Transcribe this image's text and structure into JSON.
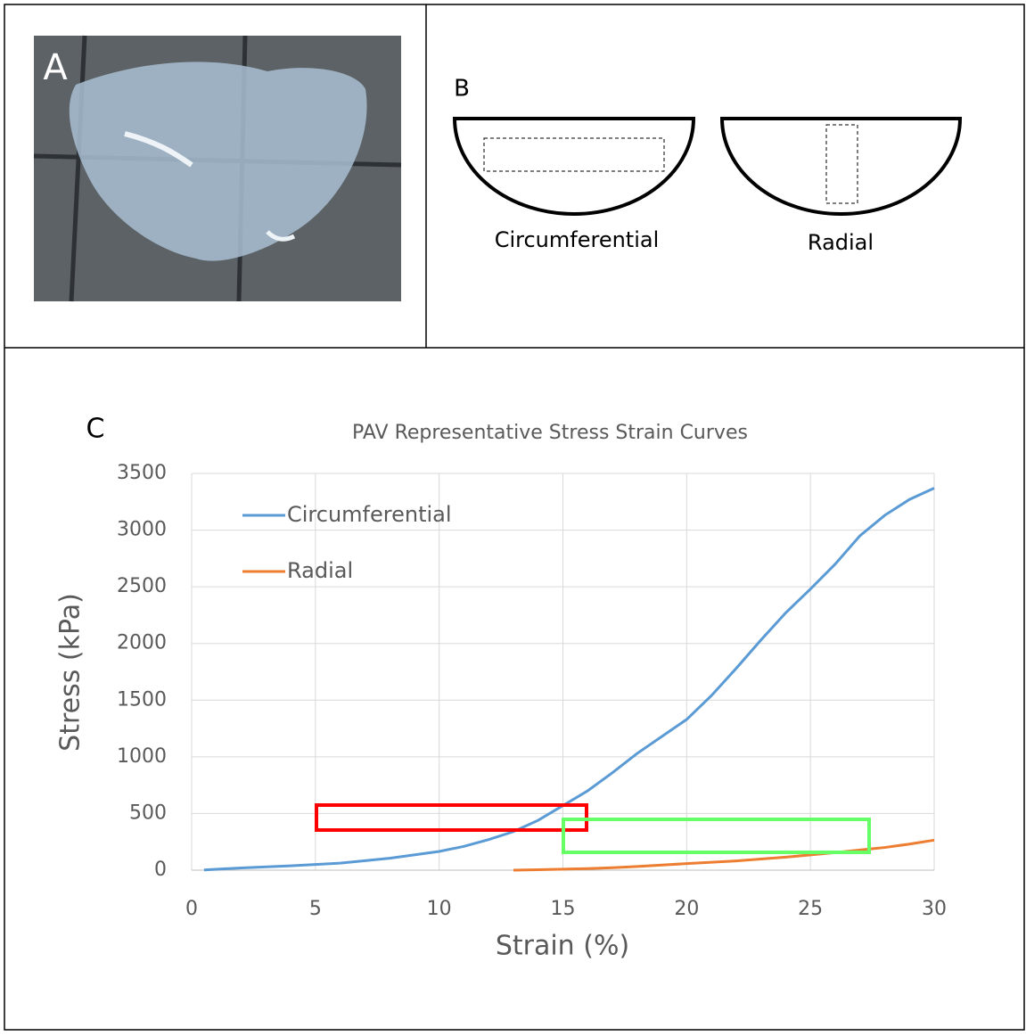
{
  "panel_labels": [
    "A",
    "B",
    "C"
  ],
  "diagram": {
    "labels": [
      "Circumferential",
      "Radial"
    ]
  },
  "chart_data": {
    "type": "line",
    "title": "PAV Representative Stress Strain Curves",
    "x_label": "Strain (%)",
    "y_label": "Stress (kPa)",
    "x": [
      0.5,
      2,
      4,
      6,
      8,
      10,
      11,
      12,
      13,
      14,
      15,
      16,
      17,
      18,
      19,
      20,
      21,
      22,
      23,
      24,
      25,
      26,
      27,
      28,
      29,
      30
    ],
    "series": [
      {
        "name": "Circumferential",
        "color": "#5b9bd5",
        "values": [
          2,
          20,
          38,
          62,
          105,
          165,
          210,
          270,
          340,
          440,
          570,
          700,
          860,
          1030,
          1180,
          1330,
          1540,
          1780,
          2030,
          2270,
          2480,
          2700,
          2950,
          3130,
          3270,
          3370
        ]
      },
      {
        "name": "Radial",
        "color": "#ed7d31",
        "values": [
          null,
          null,
          null,
          null,
          null,
          null,
          null,
          null,
          0,
          4,
          9,
          14,
          22,
          32,
          45,
          58,
          70,
          82,
          98,
          115,
          135,
          155,
          178,
          200,
          230,
          265
        ]
      }
    ],
    "xlim": [
      0,
      30
    ],
    "xticks": [
      0,
      5,
      10,
      15,
      20,
      25,
      30
    ],
    "ylim": [
      0,
      3500
    ],
    "yticks": [
      0,
      500,
      1000,
      1500,
      2000,
      2500,
      3000,
      3500
    ],
    "grid": true,
    "legend": "upper-left"
  }
}
